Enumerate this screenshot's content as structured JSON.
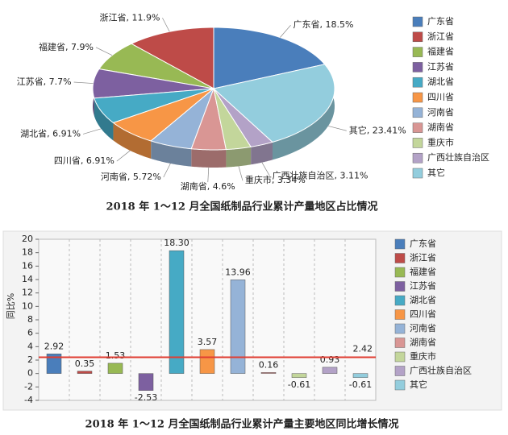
{
  "chart_data": [
    {
      "type": "pie",
      "three_d": true,
      "legend": "right",
      "title": "2018 年 1～12 月全国纸制品行业累计产量地区占比情况",
      "categories": [
        "广东省",
        "浙江省",
        "福建省",
        "江苏省",
        "湖北省",
        "四川省",
        "河南省",
        "湖南省",
        "重庆市",
        "广西壮族自治区",
        "其它"
      ],
      "values": [
        18.5,
        11.9,
        7.9,
        7.7,
        6.91,
        6.91,
        5.72,
        4.6,
        3.34,
        3.11,
        23.41
      ],
      "value_labels": [
        "广东省, 18.5%",
        "浙江省, 11.9%",
        "福建省, 7.9%",
        "江苏省, 7.7%",
        "湖北省, 6.91%",
        "四川省, 6.91%",
        "河南省, 5.72%",
        "湖南省, 4.6%",
        "重庆市, 3.34%",
        "广西壮族自治区, 3.11%",
        "其它, 23.41%"
      ],
      "colors": [
        "#4a7ebb",
        "#be4b48",
        "#98b954",
        "#7d60a0",
        "#46aac5",
        "#f79646",
        "#95b3d7",
        "#d99694",
        "#c3d69b",
        "#b3a2c7",
        "#93cddd"
      ]
    },
    {
      "type": "bar",
      "legend": "right",
      "title": "2018 年 1～12 月全国纸制品行业累计产量主要地区同比增长情况",
      "ylabel": "同比%",
      "categories": [
        "广东省",
        "浙江省",
        "福建省",
        "江苏省",
        "湖北省",
        "四川省",
        "河南省",
        "湖南省",
        "重庆市",
        "广西壮族自治区",
        "其它"
      ],
      "values": [
        2.92,
        0.35,
        1.53,
        -2.53,
        18.3,
        3.57,
        13.96,
        0.16,
        -0.61,
        0.93,
        -0.61
      ],
      "value_labels": [
        "2.92",
        "0.35",
        "1.53",
        "-2.53",
        "18.30",
        "3.57",
        "13.96",
        "0.16",
        "-0.61",
        "0.93",
        "-0.61"
      ],
      "colors": [
        "#4a7ebb",
        "#be4b48",
        "#98b954",
        "#7d60a0",
        "#46aac5",
        "#f79646",
        "#95b3d7",
        "#d99694",
        "#c3d69b",
        "#b3a2c7",
        "#93cddd"
      ],
      "reference_line": {
        "value": 2.42,
        "color": "#e03c31"
      },
      "ylim": [
        -4,
        20
      ],
      "yticks": [
        -4,
        -2,
        0,
        2,
        4,
        6,
        8,
        10,
        12,
        14,
        16,
        18,
        20
      ]
    }
  ]
}
